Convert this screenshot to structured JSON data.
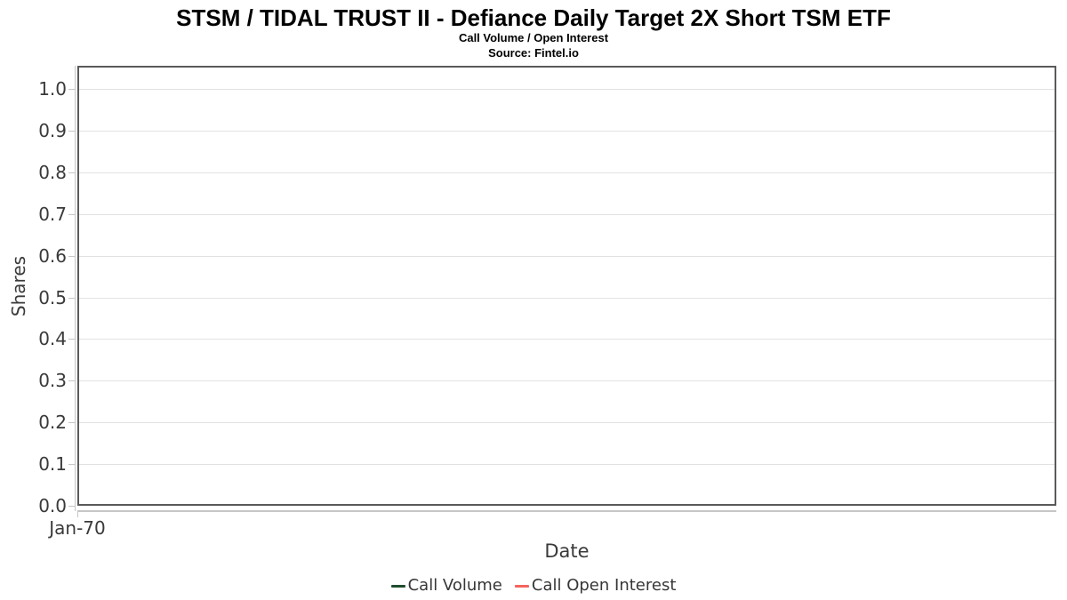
{
  "header": {
    "title": "STSM / TIDAL TRUST II - Defiance Daily Target 2X Short TSM ETF",
    "subtitle": "Call Volume / Open Interest",
    "source": "Source: Fintel.io"
  },
  "chart_data": {
    "type": "line",
    "title": "STSM / TIDAL TRUST II - Defiance Daily Target 2X Short TSM ETF",
    "subtitle": "Call Volume / Open Interest",
    "source": "Source: Fintel.io",
    "xlabel": "Date",
    "ylabel": "Shares",
    "x_ticks": [
      "Jan-70"
    ],
    "y_ticks": [
      "0.0",
      "0.1",
      "0.2",
      "0.3",
      "0.4",
      "0.5",
      "0.6",
      "0.7",
      "0.8",
      "0.9",
      "1.0"
    ],
    "ylim": [
      0,
      1.05
    ],
    "grid": true,
    "legend_position": "bottom",
    "series": [
      {
        "name": "Call Volume",
        "color": "#1f4d2e",
        "x": [],
        "values": []
      },
      {
        "name": "Call Open Interest",
        "color": "#f4645c",
        "x": [],
        "values": []
      }
    ]
  },
  "colors": {
    "plot_border": "#5a5a5a",
    "gridline": "#e2e2e2",
    "axis_line": "#c6c6c6",
    "axis_text": "#3a3a3a",
    "title_text": "#000000"
  }
}
